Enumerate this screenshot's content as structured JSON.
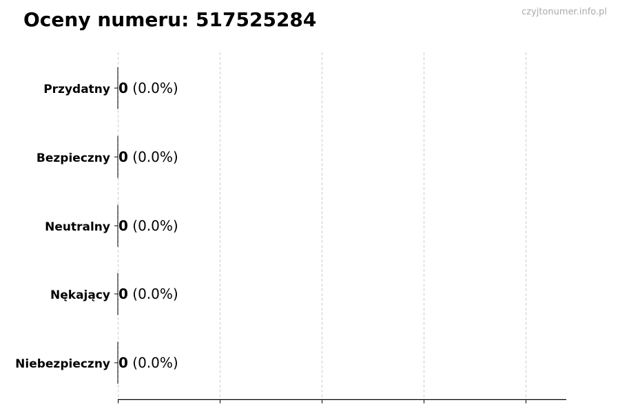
{
  "watermark": "czyjtonumer.info.pl",
  "chart_data": {
    "type": "bar",
    "orientation": "horizontal",
    "title": "Oceny numeru: 517525284",
    "categories": [
      "Przydatny",
      "Bezpieczny",
      "Neutralny",
      "Nękający",
      "Niebezpieczny"
    ],
    "values": [
      0,
      0,
      0,
      0,
      0
    ],
    "percent_labels": [
      "(0.0%)",
      "(0.0%)",
      "(0.0%)",
      "(0.0%)",
      "(0.0%)"
    ],
    "value_labels": [
      "0",
      "0",
      "0",
      "0",
      "0"
    ],
    "xlabel": "",
    "ylabel": "",
    "grid": "vertical dashed",
    "x_tick_labels_shown": false,
    "legend": "none",
    "colors": {
      "bar_edge": "#000000",
      "grid": "#cccccc",
      "watermark": "#aaaaaa"
    }
  }
}
